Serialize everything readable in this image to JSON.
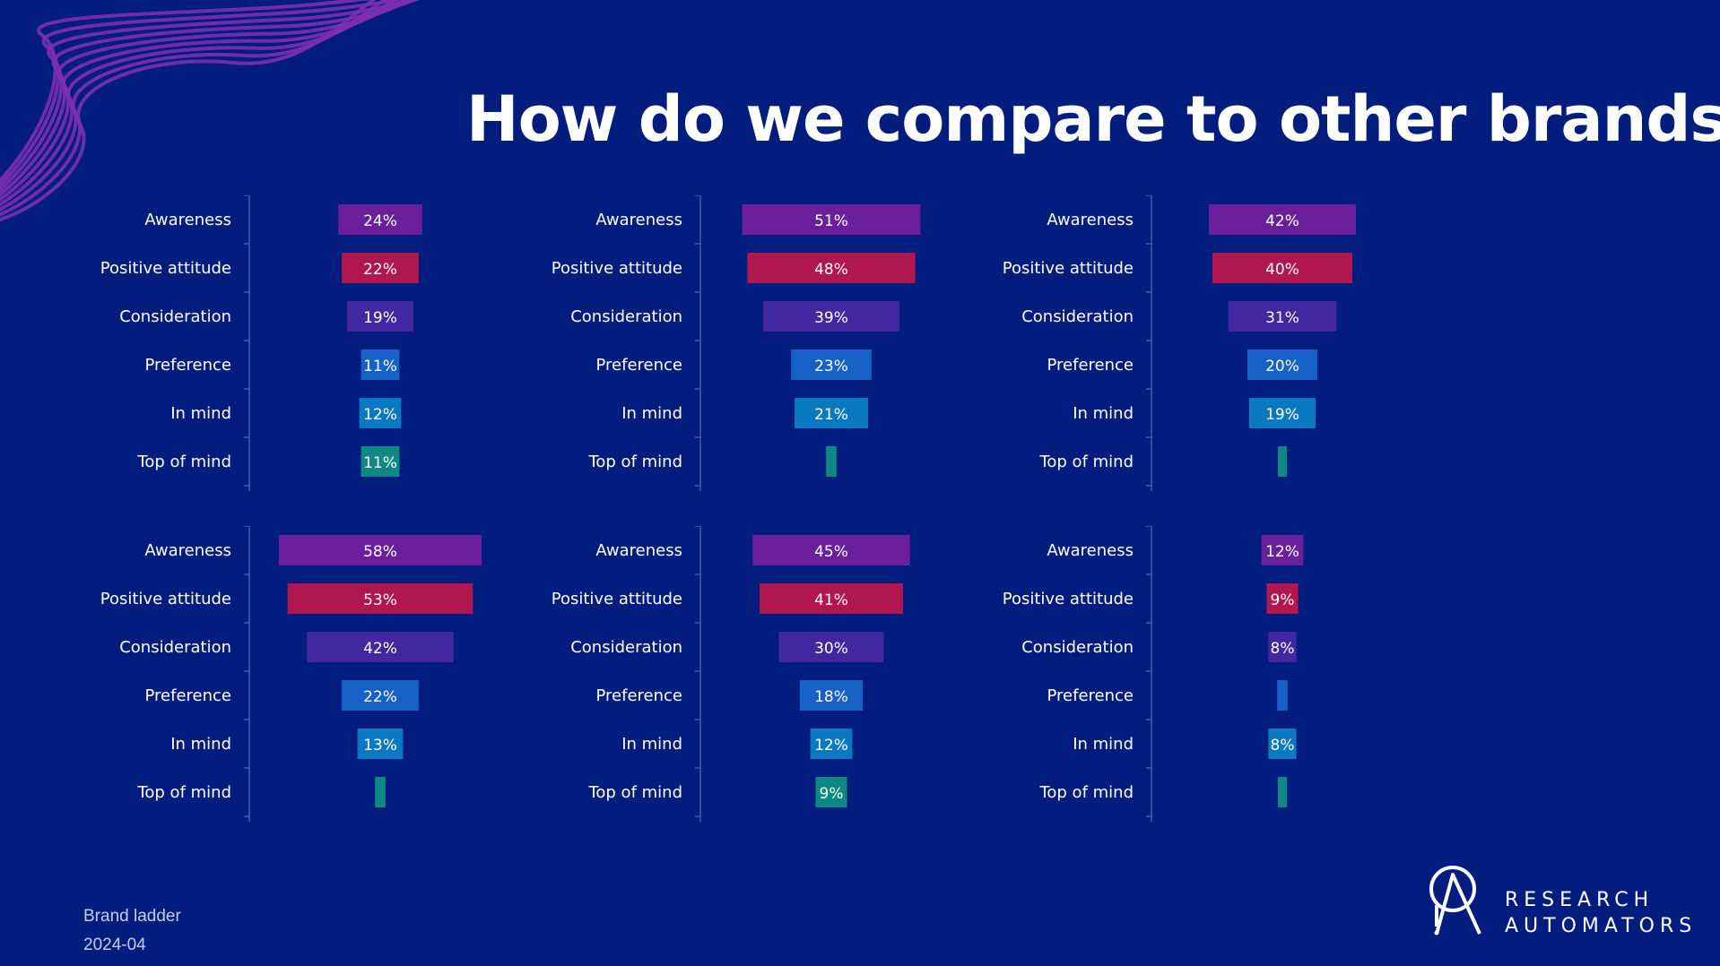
{
  "title": "How do we compare to other brands?",
  "footer": {
    "report_name": "Brand ladder",
    "period": "2024-04"
  },
  "logo": {
    "line1": "RESEARCH",
    "line2": "AUTOMATORS",
    "icon": "ra-logo-icon"
  },
  "colors": {
    "background": "#021d7d",
    "Awareness": "#6a1f9c",
    "Positive attitude": "#b0174f",
    "Consideration": "#4127a0",
    "Preference": "#1660c6",
    "In mind": "#0b78c2",
    "Top of mind": "#0d8883"
  },
  "chart_data": [
    {
      "type": "bar",
      "categories": [
        "Awareness",
        "Positive attitude",
        "Consideration",
        "Preference",
        "In mind",
        "Top of mind"
      ],
      "values": [
        24,
        22,
        19,
        11,
        12,
        11
      ],
      "labels": [
        "24%",
        "22%",
        "19%",
        "11%",
        "12%",
        "11%"
      ]
    },
    {
      "type": "bar",
      "categories": [
        "Awareness",
        "Positive attitude",
        "Consideration",
        "Preference",
        "In mind",
        "Top of mind"
      ],
      "values": [
        51,
        48,
        39,
        23,
        21,
        3
      ],
      "labels": [
        "51%",
        "48%",
        "39%",
        "23%",
        "21%",
        ""
      ]
    },
    {
      "type": "bar",
      "categories": [
        "Awareness",
        "Positive attitude",
        "Consideration",
        "Preference",
        "In mind",
        "Top of mind"
      ],
      "values": [
        42,
        40,
        31,
        20,
        19,
        2
      ],
      "labels": [
        "42%",
        "40%",
        "31%",
        "20%",
        "19%",
        ""
      ]
    },
    {
      "type": "bar",
      "categories": [
        "Awareness",
        "Positive attitude",
        "Consideration",
        "Preference",
        "In mind",
        "Top of mind"
      ],
      "values": [
        58,
        53,
        42,
        22,
        13,
        3
      ],
      "labels": [
        "58%",
        "53%",
        "42%",
        "22%",
        "13%",
        ""
      ]
    },
    {
      "type": "bar",
      "categories": [
        "Awareness",
        "Positive attitude",
        "Consideration",
        "Preference",
        "In mind",
        "Top of mind"
      ],
      "values": [
        45,
        41,
        30,
        18,
        12,
        9
      ],
      "labels": [
        "45%",
        "41%",
        "30%",
        "18%",
        "12%",
        "9%"
      ]
    },
    {
      "type": "bar",
      "categories": [
        "Awareness",
        "Positive attitude",
        "Consideration",
        "Preference",
        "In mind",
        "Top of mind"
      ],
      "values": [
        12,
        9,
        8,
        3,
        8,
        2
      ],
      "labels": [
        "12%",
        "9%",
        "8%",
        "",
        "8%",
        ""
      ]
    }
  ]
}
